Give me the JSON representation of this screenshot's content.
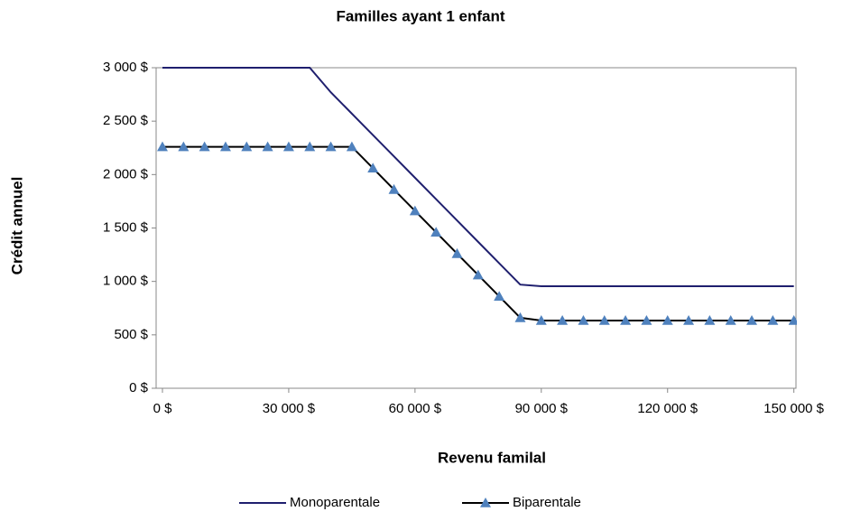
{
  "chart_data": {
    "type": "line",
    "title": "Familles ayant 1 enfant",
    "x_label": "Revenu familal",
    "y_label": "Crédit annuel",
    "x": [
      0,
      5000,
      10000,
      15000,
      20000,
      25000,
      30000,
      35000,
      40000,
      45000,
      50000,
      55000,
      60000,
      65000,
      70000,
      75000,
      80000,
      85000,
      90000,
      95000,
      100000,
      105000,
      110000,
      115000,
      120000,
      125000,
      130000,
      135000,
      140000,
      145000,
      150000
    ],
    "series": [
      {
        "name": "Monoparentale",
        "color": "#1f1f6e",
        "marker": "none",
        "values": [
          3000,
          3000,
          3000,
          3000,
          3000,
          3000,
          3000,
          3000,
          2770,
          2570,
          2370,
          2170,
          1970,
          1770,
          1570,
          1370,
          1170,
          970,
          955,
          955,
          955,
          955,
          955,
          955,
          955,
          955,
          955,
          955,
          955,
          955,
          955
        ]
      },
      {
        "name": "Biparentale",
        "color": "#000000",
        "marker_color": "#4f81bd",
        "marker": "triangle",
        "values": [
          2260,
          2260,
          2260,
          2260,
          2260,
          2260,
          2260,
          2260,
          2260,
          2260,
          2060,
          1860,
          1660,
          1460,
          1260,
          1060,
          860,
          660,
          634,
          634,
          634,
          634,
          634,
          634,
          634,
          634,
          634,
          634,
          634,
          634,
          634
        ]
      }
    ],
    "xlim": [
      -1500,
      150500
    ],
    "xticks": [
      {
        "value": 0,
        "label": "0 $"
      },
      {
        "value": 30000,
        "label": "30 000 $"
      },
      {
        "value": 60000,
        "label": "60 000 $"
      },
      {
        "value": 90000,
        "label": "90 000 $"
      },
      {
        "value": 120000,
        "label": "120 000 $"
      },
      {
        "value": 150000,
        "label": "150 000 $"
      }
    ],
    "ylim": [
      0,
      3000
    ],
    "yticks": [
      {
        "value": 0,
        "label": "0 $"
      },
      {
        "value": 500,
        "label": "500 $"
      },
      {
        "value": 1000,
        "label": "1 000 $"
      },
      {
        "value": 1500,
        "label": "1 500 $"
      },
      {
        "value": 2000,
        "label": "2 000 $"
      },
      {
        "value": 2500,
        "label": "2 500 $"
      },
      {
        "value": 3000,
        "label": "3 000 $"
      }
    ],
    "grid": false,
    "legend": "bottom"
  }
}
